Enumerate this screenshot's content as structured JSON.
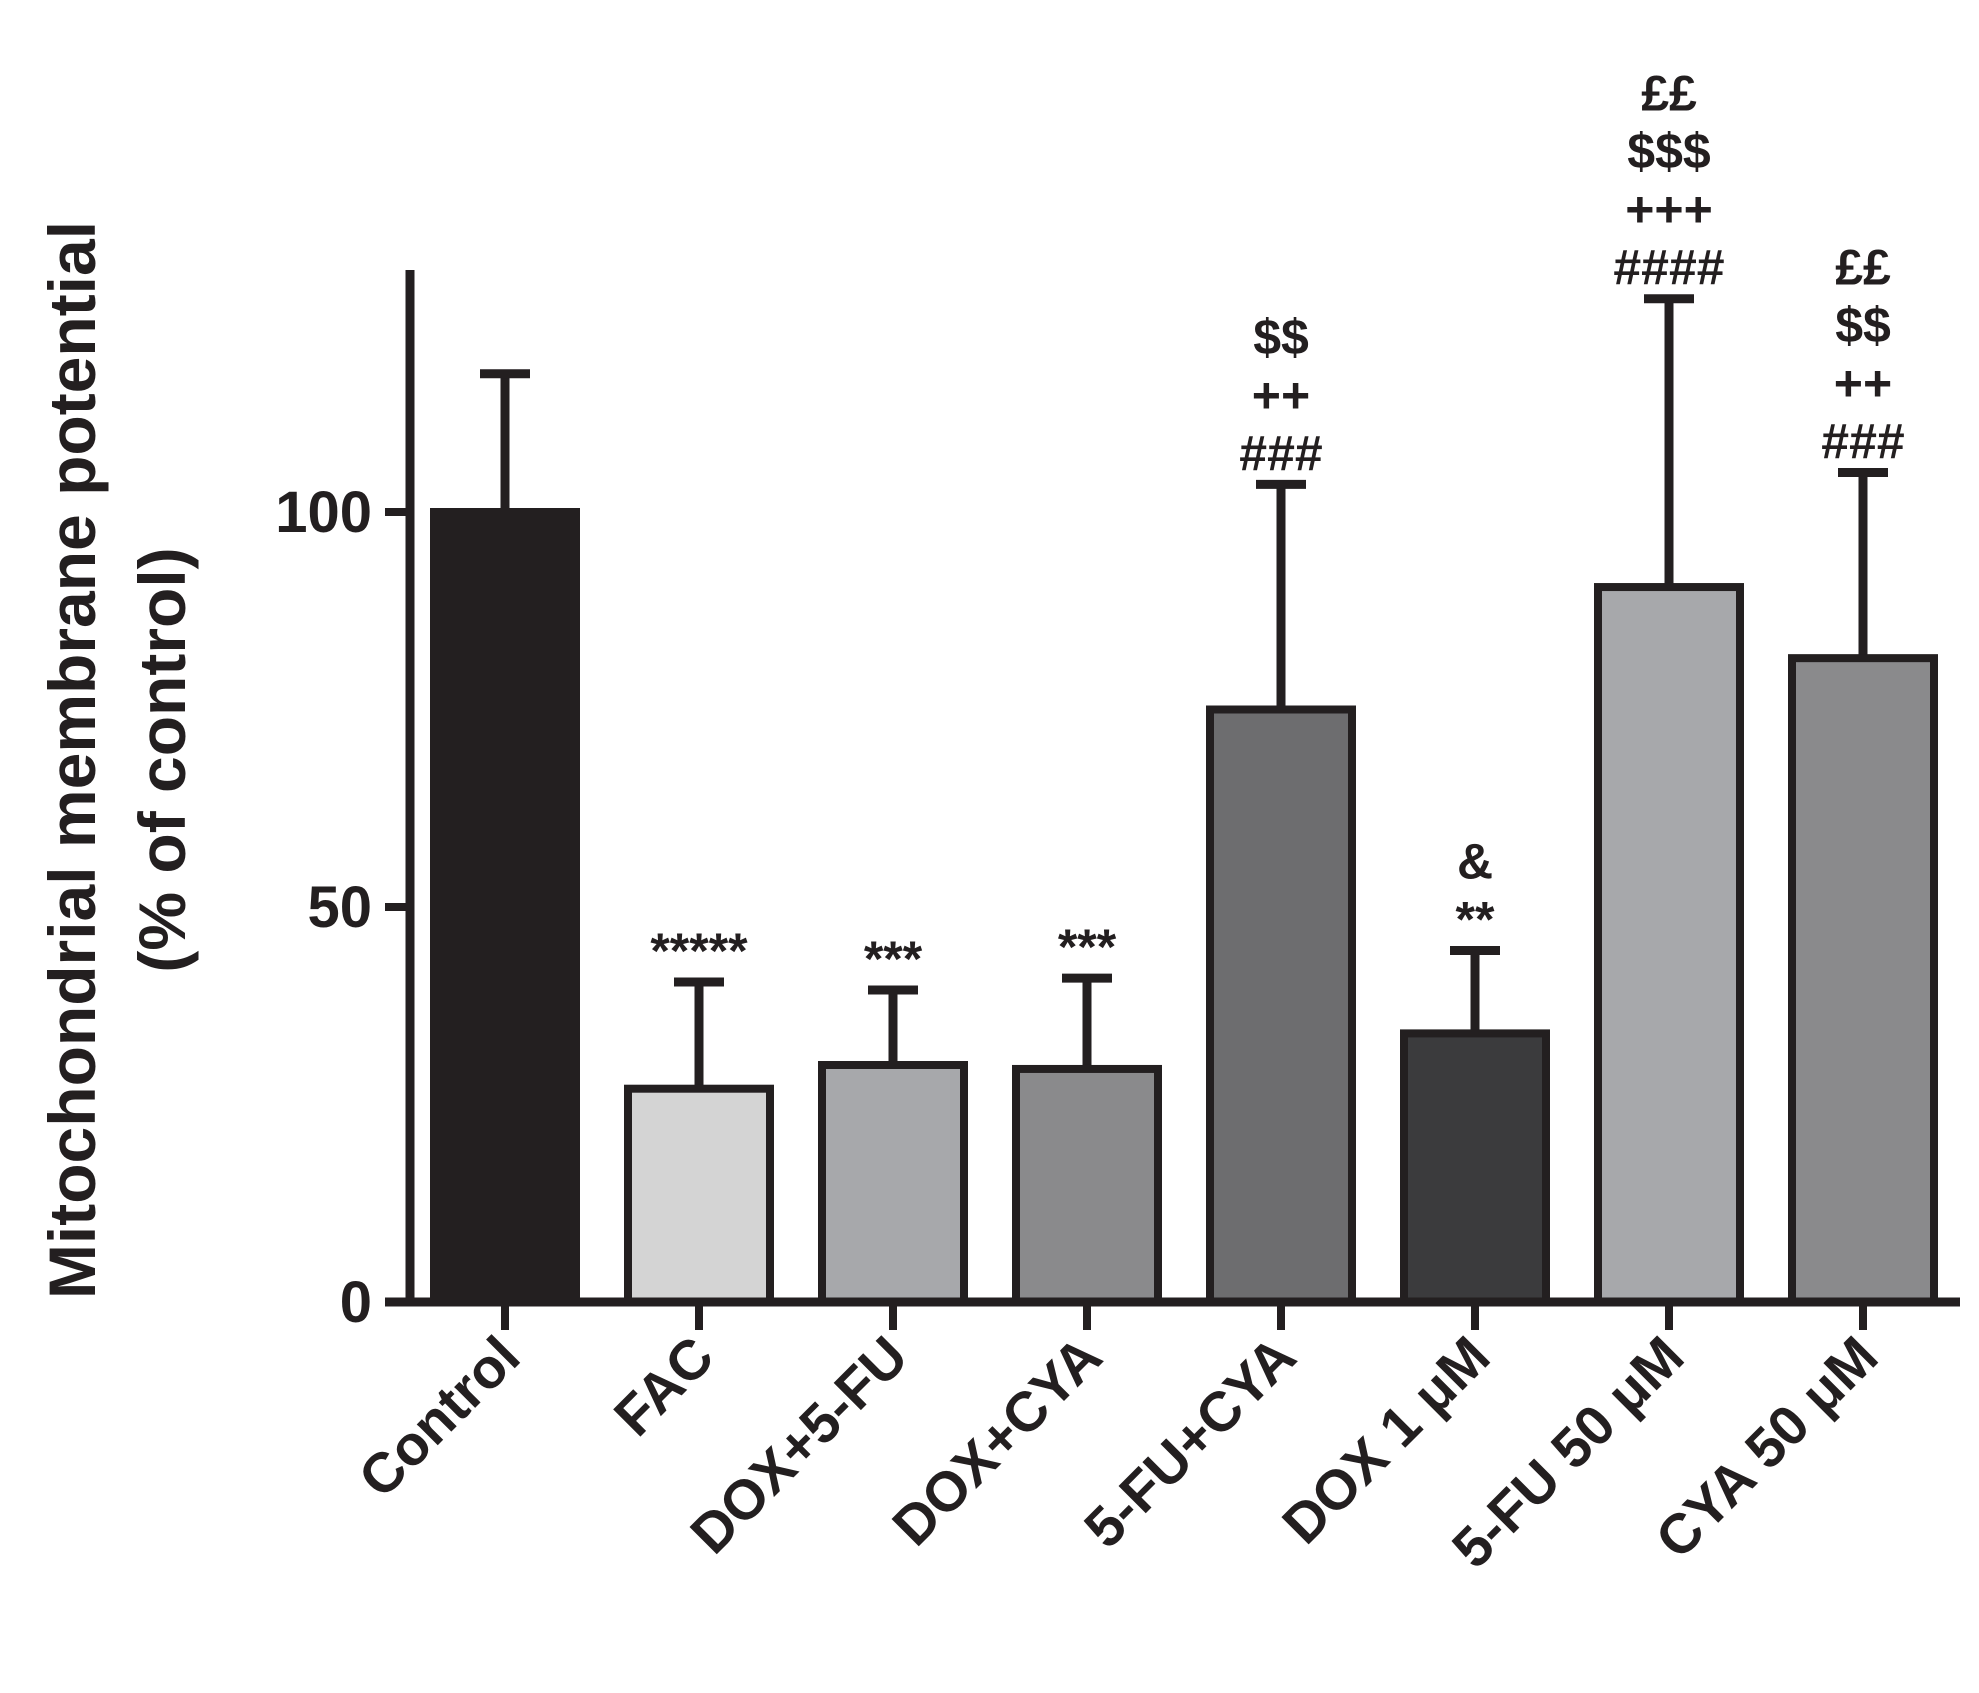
{
  "chart_data": {
    "type": "bar",
    "title": "",
    "xlabel": "",
    "ylabel_line1": "Mitochondrial membrane potential",
    "ylabel_line2": "(% of control)",
    "ylim": [
      0,
      130
    ],
    "yticks": [
      0,
      50,
      100
    ],
    "categories": [
      "Control",
      "FAC",
      "DOX+5-FU",
      "DOX+CYA",
      "5-FU+CYA",
      "DOX 1 μM",
      "5-FU 50 μM",
      "CYA 50 μM"
    ],
    "values": [
      100,
      27,
      30,
      29.5,
      75,
      34,
      90.5,
      81.5
    ],
    "errors": [
      17.5,
      13.5,
      9.5,
      11.5,
      28.5,
      10.5,
      36.5,
      23.5
    ],
    "colors": [
      "#231f20",
      "#d4d4d4",
      "#a7a8ab",
      "#8a8a8c",
      "#6d6d6f",
      "#3b3b3d",
      "#a7a8ab",
      "#8a8a8c"
    ],
    "significance": [
      [],
      [
        "*****"
      ],
      [
        "***"
      ],
      [
        "***"
      ],
      [
        "$$",
        "++",
        "###"
      ],
      [
        "&",
        "**"
      ],
      [
        "££",
        "$$$",
        "+++",
        "####"
      ],
      [
        "££",
        "$$",
        "++",
        "###"
      ]
    ]
  }
}
